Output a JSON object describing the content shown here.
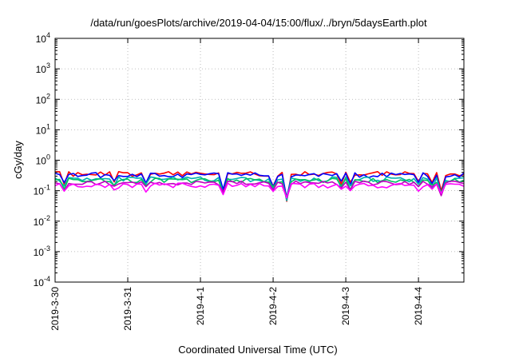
{
  "chart_data": {
    "type": "line",
    "title": "/data/run/goesPlots/archive/2019-04-04/15:00/flux/../bryn/5daysEarth.plot",
    "xlabel": "Coordinated Universal Time (UTC)",
    "ylabel": "cGy/day",
    "yscale": "log",
    "ylim": [
      0.0001,
      10000
    ],
    "xlim": [
      "2019-03-30T00:00",
      "2019-04-04T15:00"
    ],
    "grid": true,
    "legend": "none",
    "x_ticks": [
      "2019-3-30",
      "2019-3-31",
      "2019-4-1",
      "2019-4-2",
      "2019-4-3",
      "2019-4-4"
    ],
    "y_ticks": [
      {
        "base": "10",
        "exp": "-4"
      },
      {
        "base": "10",
        "exp": "-3"
      },
      {
        "base": "10",
        "exp": "-2"
      },
      {
        "base": "10",
        "exp": "-1"
      },
      {
        "base": "10",
        "exp": "0"
      },
      {
        "base": "10",
        "exp": "1"
      },
      {
        "base": "10",
        "exp": "2"
      },
      {
        "base": "10",
        "exp": "3"
      },
      {
        "base": "10",
        "exp": "4"
      }
    ],
    "sampling_hours": 1.5,
    "dips": [
      {
        "time": "2019-03-30T02:30",
        "depth": 0.45
      },
      {
        "time": "2019-03-30T19:00",
        "depth": 0.55
      },
      {
        "time": "2019-03-31T06:30",
        "depth": 0.5
      },
      {
        "time": "2019-04-01T07:30",
        "depth": 0.3
      },
      {
        "time": "2019-04-02T00:00",
        "depth": 0.45
      },
      {
        "time": "2019-04-02T04:00",
        "depth": 0.5
      },
      {
        "time": "2019-04-02T04:30",
        "depth": 0.5
      },
      {
        "time": "2019-04-02T05:00",
        "depth": 0.5
      },
      {
        "time": "2019-04-02T22:00",
        "depth": 0.5
      },
      {
        "time": "2019-04-03T02:00",
        "depth": 0.45
      },
      {
        "time": "2019-04-03T23:30",
        "depth": 0.55
      },
      {
        "time": "2019-04-04T04:30",
        "depth": 0.5
      },
      {
        "time": "2019-04-04T07:30",
        "depth": 0.5
      },
      {
        "time": "2019-04-04T08:00",
        "depth": 0.5
      }
    ],
    "series": [
      {
        "color": "#ff0000",
        "baseline": 0.36,
        "noise": 0.07
      },
      {
        "color": "#0000ff",
        "baseline": 0.33,
        "noise": 0.07
      },
      {
        "color": "#00b0b0",
        "baseline": 0.24,
        "noise": 0.05
      },
      {
        "color": "#00c060",
        "baseline": 0.22,
        "noise": 0.04
      },
      {
        "color": "#c000c0",
        "baseline": 0.18,
        "noise": 0.03
      },
      {
        "color": "#ff00ff",
        "baseline": 0.15,
        "noise": 0.03
      }
    ]
  }
}
